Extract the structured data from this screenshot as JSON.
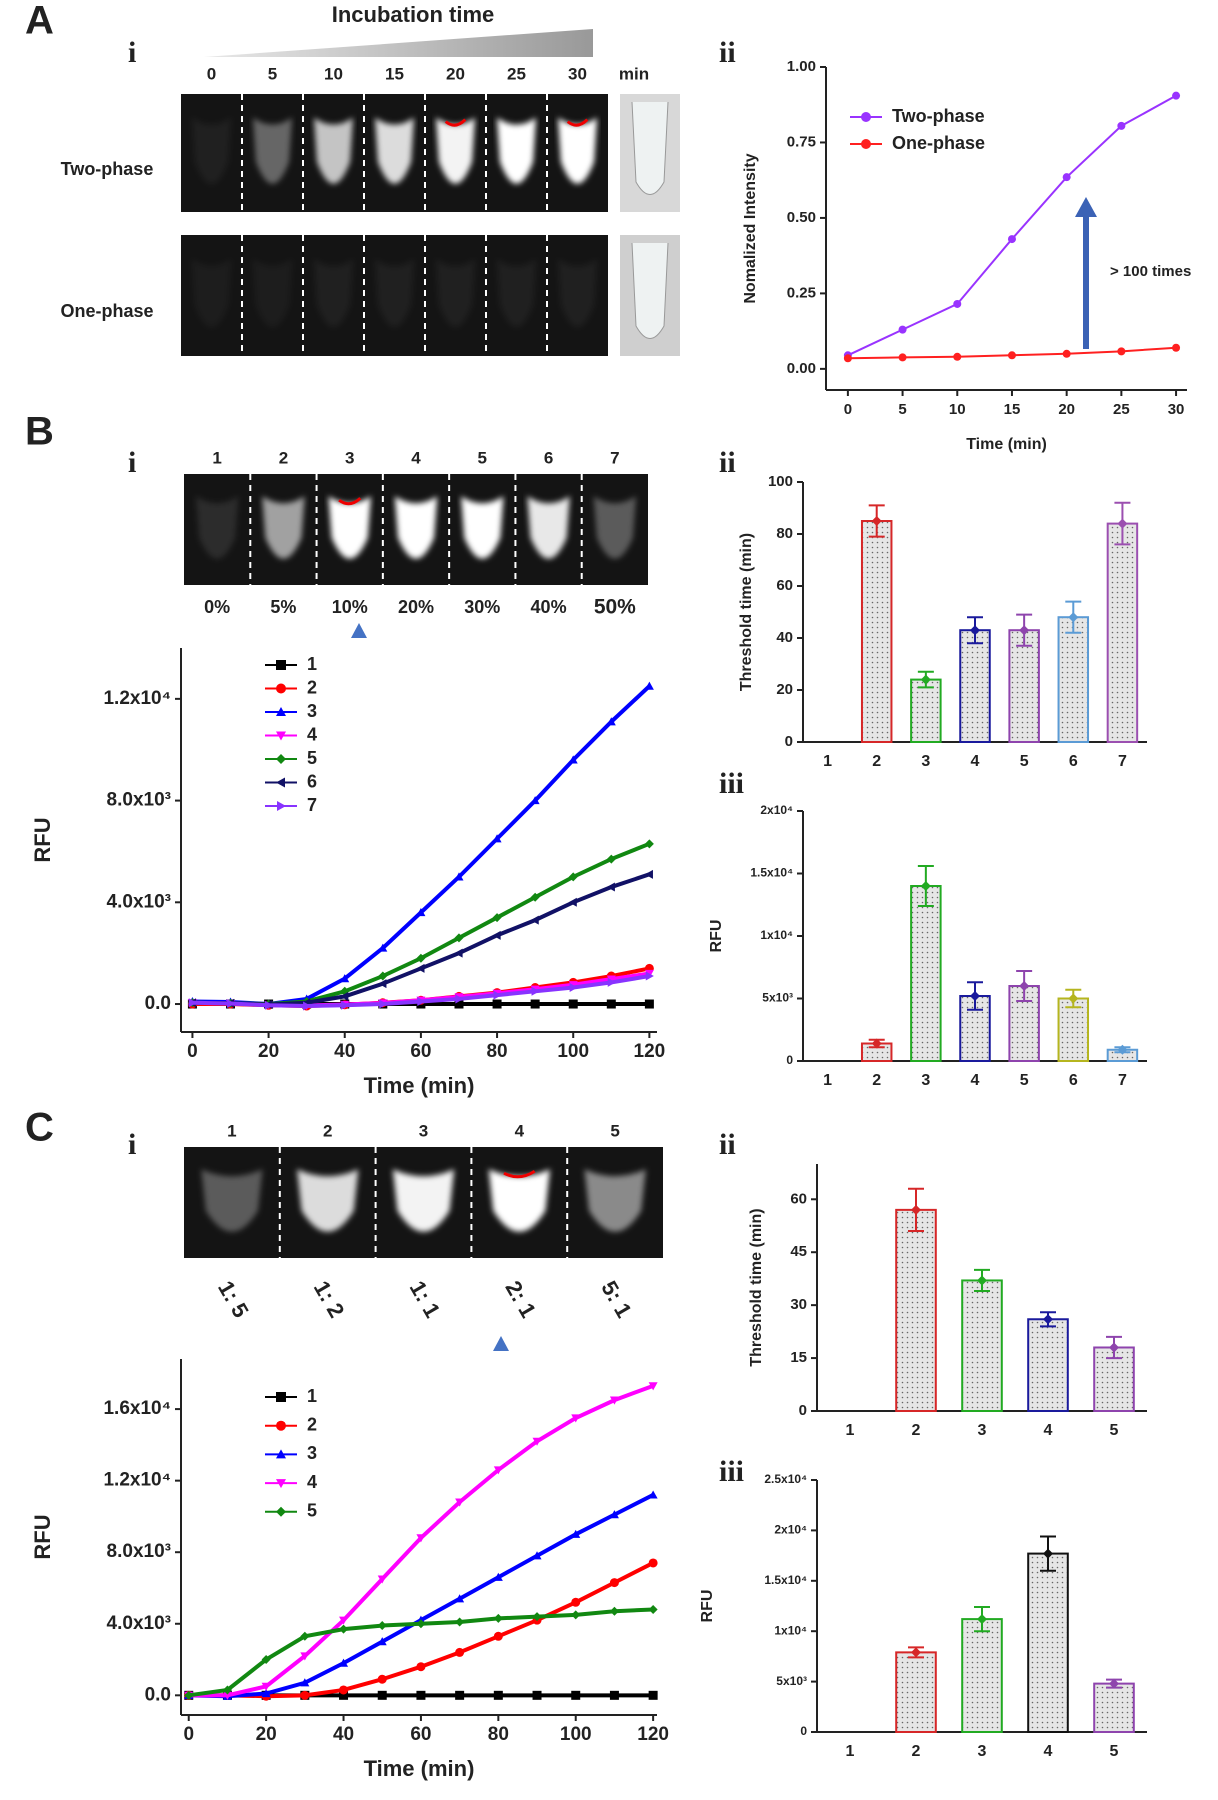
{
  "panel_labels": [
    "A",
    "B",
    "C"
  ],
  "sub_labels": [
    "i",
    "ii",
    "i",
    "ii",
    "iii",
    "i",
    "ii",
    "iii"
  ],
  "photos": {
    "incubation": {
      "title": "Incubation time",
      "times": [
        "0",
        "5",
        "10",
        "15",
        "20",
        "25",
        "30"
      ],
      "unit": "min",
      "rows": [
        "Two-phase",
        "One-phase"
      ]
    },
    "percent": {
      "lanes": [
        "1",
        "2",
        "3",
        "4",
        "5",
        "6",
        "7"
      ],
      "conditions": [
        "0%",
        "5%",
        "10%",
        "20%",
        "30%",
        "40%",
        "50%"
      ]
    },
    "ratio": {
      "lanes": [
        "1",
        "2",
        "3",
        "4",
        "5"
      ],
      "conditions": [
        "1: 5",
        "1: 2",
        "1: 1",
        "2: 1",
        "5: 1"
      ]
    }
  },
  "chart_data": [
    {
      "type": "line",
      "x": [
        0,
        5,
        10,
        15,
        20,
        25,
        30
      ],
      "series": [
        {
          "name": "Two-phase",
          "color": "#9933ff",
          "marker": "circle",
          "values": [
            0.045,
            0.13,
            0.215,
            0.43,
            0.635,
            0.805,
            0.905
          ]
        },
        {
          "name": "One-phase",
          "color": "#ff2020",
          "marker": "circle",
          "values": [
            0.035,
            0.038,
            0.04,
            0.045,
            0.05,
            0.058,
            0.07
          ]
        }
      ],
      "xlabel": "Time (min)",
      "ylabel": "Nomalized Intensity",
      "xlim": [
        -2,
        31
      ],
      "ylim": [
        -0.07,
        1.0
      ],
      "xticks": [
        0,
        5,
        10,
        15,
        20,
        25,
        30
      ],
      "yticks": [
        {
          "value": 0,
          "label": "0.00"
        },
        0.25,
        {
          "value": 0.5,
          "label": "0.50"
        },
        0.75,
        {
          "value": 1,
          "label": "1.00"
        }
      ],
      "legend": "upper left",
      "annotation": "> 100 times"
    },
    {
      "type": "bar",
      "categories": [
        "1",
        "2",
        "3",
        "4",
        "5",
        "6",
        "7"
      ],
      "values": [
        null,
        85,
        24,
        43,
        43,
        48,
        84
      ],
      "errors": [
        null,
        6,
        3,
        5,
        6,
        6,
        8
      ],
      "colors": [
        null,
        "#d62728",
        "#22aa22",
        "#1a1a9c",
        "#8e44ad",
        "#5b9bd5",
        "#9b4fb0"
      ],
      "ylabel": "Threshold time (min)",
      "ylim": [
        0,
        100
      ],
      "yticks": [
        0,
        20,
        40,
        60,
        80,
        100
      ]
    },
    {
      "type": "bar",
      "categories": [
        "1",
        "2",
        "3",
        "4",
        "5",
        "6",
        "7"
      ],
      "values": [
        null,
        1400,
        14000,
        5200,
        6000,
        5000,
        900
      ],
      "errors": [
        null,
        300,
        1600,
        1100,
        1200,
        700,
        200
      ],
      "colors": [
        null,
        "#d62728",
        "#22aa22",
        "#1a1a9c",
        "#8e44ad",
        "#b5b51f",
        "#5b9bd5"
      ],
      "ylabel": "RFU",
      "ylim": [
        0,
        20000
      ],
      "yticks": [
        0,
        {
          "value": 5000,
          "label": "5x10³"
        },
        {
          "value": 10000,
          "label": "1x10⁴"
        },
        {
          "value": 15000,
          "label": "1.5x10⁴"
        },
        {
          "value": 20000,
          "label": "2x10⁴"
        }
      ]
    },
    {
      "type": "line",
      "x": [
        0,
        10,
        20,
        30,
        40,
        50,
        60,
        70,
        80,
        90,
        100,
        110,
        120
      ],
      "series": [
        {
          "name": "1",
          "color": "#000000",
          "marker": "square",
          "values": [
            0,
            0,
            0,
            0,
            0,
            0,
            0,
            0,
            0,
            0,
            0,
            0,
            0
          ]
        },
        {
          "name": "2",
          "color": "#ff0000",
          "marker": "circle",
          "values": [
            0,
            0,
            -50,
            -80,
            -30,
            50,
            150,
            300,
            450,
            650,
            850,
            1100,
            1400
          ]
        },
        {
          "name": "3",
          "color": "#0000ff",
          "marker": "up",
          "values": [
            100,
            80,
            0,
            200,
            1000,
            2200,
            3600,
            5000,
            6500,
            8000,
            9600,
            11100,
            12500
          ]
        },
        {
          "name": "4",
          "color": "#ff00ff",
          "marker": "down",
          "values": [
            50,
            20,
            -40,
            -60,
            -20,
            40,
            150,
            280,
            420,
            580,
            760,
            980,
            1200
          ]
        },
        {
          "name": "5",
          "color": "#118811",
          "marker": "diamond",
          "values": [
            50,
            30,
            0,
            100,
            500,
            1100,
            1800,
            2600,
            3400,
            4200,
            5000,
            5700,
            6300
          ]
        },
        {
          "name": "6",
          "color": "#111166",
          "marker": "left",
          "values": [
            50,
            30,
            -20,
            50,
            300,
            800,
            1400,
            2000,
            2700,
            3300,
            4000,
            4600,
            5100
          ]
        },
        {
          "name": "7",
          "color": "#8833ff",
          "marker": "right",
          "values": [
            50,
            20,
            -50,
            -80,
            -50,
            0,
            100,
            200,
            350,
            500,
            650,
            850,
            1100
          ]
        }
      ],
      "xlabel": "Time (min)",
      "ylabel": "RFU",
      "xlim": [
        -3,
        122
      ],
      "ylim": [
        -1100,
        14000
      ],
      "xticks": [
        0,
        20,
        40,
        60,
        80,
        100,
        120
      ],
      "yticks": [
        {
          "value": 0,
          "label": "0.0"
        },
        {
          "value": 4000,
          "label": "4.0x10³"
        },
        {
          "value": 8000,
          "label": "8.0x10³"
        },
        {
          "value": 12000,
          "label": "1.2x10⁴"
        }
      ],
      "legend": "upper left"
    },
    {
      "type": "bar",
      "categories": [
        "1",
        "2",
        "3",
        "4",
        "5"
      ],
      "values": [
        null,
        57,
        37,
        26,
        18
      ],
      "errors": [
        null,
        6,
        3,
        2,
        3
      ],
      "colors": [
        null,
        "#d62728",
        "#22aa22",
        "#1a1a9c",
        "#8e44ad"
      ],
      "ylabel": "Threshold time (min)",
      "ylim": [
        0,
        70
      ],
      "yticks": [
        0,
        15,
        30,
        45,
        60
      ]
    },
    {
      "type": "bar",
      "categories": [
        "1",
        "2",
        "3",
        "4",
        "5"
      ],
      "values": [
        null,
        7900,
        11200,
        17700,
        4800
      ],
      "errors": [
        null,
        500,
        1200,
        1700,
        400
      ],
      "colors": [
        null,
        "#d62728",
        "#22aa22",
        "#111111",
        "#8e44ad"
      ],
      "ylabel": "RFU",
      "ylim": [
        0,
        25000
      ],
      "yticks": [
        0,
        {
          "value": 5000,
          "label": "5x10³"
        },
        {
          "value": 10000,
          "label": "1x10⁴"
        },
        {
          "value": 15000,
          "label": "1.5x10⁴"
        },
        {
          "value": 20000,
          "label": "2x10⁴"
        },
        {
          "value": 25000,
          "label": "2.5x10⁴"
        }
      ]
    },
    {
      "type": "line",
      "x": [
        0,
        10,
        20,
        30,
        40,
        50,
        60,
        70,
        80,
        90,
        100,
        110,
        120
      ],
      "series": [
        {
          "name": "1",
          "color": "#000000",
          "marker": "square",
          "values": [
            0,
            0,
            0,
            0,
            0,
            0,
            0,
            0,
            0,
            0,
            0,
            0,
            0
          ]
        },
        {
          "name": "2",
          "color": "#ff0000",
          "marker": "circle",
          "values": [
            0,
            0,
            -50,
            0,
            300,
            900,
            1600,
            2400,
            3300,
            4200,
            5200,
            6300,
            7400
          ]
        },
        {
          "name": "3",
          "color": "#0000ff",
          "marker": "up",
          "values": [
            0,
            -50,
            100,
            700,
            1800,
            3000,
            4200,
            5400,
            6600,
            7800,
            9000,
            10100,
            11200
          ]
        },
        {
          "name": "4",
          "color": "#ff00ff",
          "marker": "down",
          "values": [
            0,
            0,
            500,
            2200,
            4200,
            6500,
            8800,
            10800,
            12600,
            14200,
            15500,
            16500,
            17300
          ]
        },
        {
          "name": "5",
          "color": "#118811",
          "marker": "diamond",
          "values": [
            0,
            300,
            2000,
            3300,
            3700,
            3900,
            4000,
            4100,
            4300,
            4400,
            4500,
            4700,
            4800
          ]
        }
      ],
      "xlabel": "Time (min)",
      "ylabel": "RFU",
      "xlim": [
        -2,
        121
      ],
      "ylim": [
        -1100,
        18800
      ],
      "xticks": [
        0,
        20,
        40,
        60,
        80,
        100,
        120
      ],
      "yticks": [
        {
          "value": 0,
          "label": "0.0"
        },
        {
          "value": 4000,
          "label": "4.0x10³"
        },
        {
          "value": 8000,
          "label": "8.0x10³"
        },
        {
          "value": 12000,
          "label": "1.2x10⁴"
        },
        {
          "value": 16000,
          "label": "1.6x10⁴"
        }
      ],
      "legend": "upper left"
    }
  ]
}
